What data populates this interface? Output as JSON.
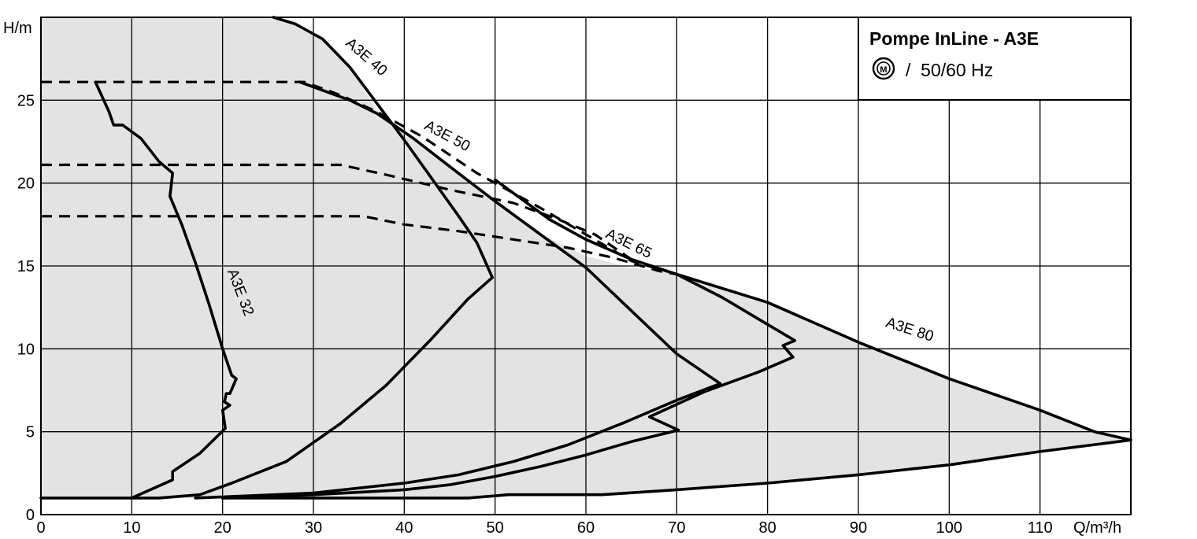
{
  "chart_data": {
    "type": "line",
    "title": "Pompe InLine - A3E",
    "subtitle": "/  50/60 Hz",
    "subtitle_icon": "motor-circle-icon",
    "xlabel": "Q/m³/h",
    "ylabel": "H/m",
    "xlim": [
      0,
      120
    ],
    "ylim": [
      0,
      30
    ],
    "x_ticks": [
      "0",
      "10",
      "20",
      "30",
      "40",
      "50",
      "60",
      "70",
      "80",
      "90",
      "100",
      "110"
    ],
    "y_ticks": [
      "0",
      "5",
      "10",
      "15",
      "20",
      "25"
    ],
    "grid": true,
    "shading": "#e3e3e3",
    "series": [
      {
        "name": "A3E 32",
        "style": "solid",
        "points": [
          [
            6,
            26.1
          ],
          [
            7.5,
            24.3
          ],
          [
            8,
            23.5
          ],
          [
            9,
            23.5
          ],
          [
            11,
            22.7
          ],
          [
            13,
            21.3
          ],
          [
            14.5,
            20.6
          ],
          [
            14.2,
            19.2
          ],
          [
            15.5,
            17.5
          ],
          [
            17,
            15.2
          ],
          [
            18.5,
            12.7
          ],
          [
            20,
            10
          ],
          [
            21,
            8.4
          ],
          [
            21.5,
            8.2
          ],
          [
            20.8,
            7.3
          ],
          [
            20.4,
            7.3
          ],
          [
            20.2,
            6.8
          ],
          [
            20.8,
            6.6
          ],
          [
            20,
            6.3
          ],
          [
            20.3,
            5.2
          ],
          [
            17.5,
            3.7
          ],
          [
            14.5,
            2.6
          ],
          [
            14.5,
            2.1
          ],
          [
            10,
            1.0
          ]
        ]
      },
      {
        "name": "A3E 40",
        "style": "solid",
        "points": [
          [
            25.6,
            30
          ],
          [
            28,
            29.6
          ],
          [
            31,
            28.7
          ],
          [
            34,
            27
          ],
          [
            37,
            24.8
          ],
          [
            40,
            22.6
          ],
          [
            43,
            20.3
          ],
          [
            46,
            18
          ],
          [
            48,
            16.4
          ],
          [
            49.7,
            14.3
          ],
          [
            47,
            13
          ],
          [
            43,
            10.6
          ],
          [
            38,
            7.8
          ],
          [
            33,
            5.5
          ],
          [
            27,
            3.2
          ],
          [
            21,
            1.9
          ],
          [
            17.5,
            1.2
          ],
          [
            13,
            1.0
          ],
          [
            0,
            1.0
          ]
        ]
      },
      {
        "name": "A3E 50",
        "style": "solid",
        "points": [
          [
            28.5,
            26.1
          ],
          [
            34,
            25
          ],
          [
            37,
            24.2
          ],
          [
            41,
            22.7
          ],
          [
            45,
            21
          ],
          [
            50,
            18.9
          ],
          [
            55,
            16.9
          ],
          [
            60,
            14.9
          ],
          [
            65,
            12.3
          ],
          [
            70,
            9.7
          ],
          [
            74.8,
            7.9
          ],
          [
            70,
            6.9
          ],
          [
            64,
            5.5
          ],
          [
            58,
            4.2
          ],
          [
            52,
            3.2
          ],
          [
            46,
            2.4
          ],
          [
            40,
            1.9
          ],
          [
            30,
            1.3
          ],
          [
            17,
            1.0
          ]
        ]
      },
      {
        "name": "A3E 65",
        "style": "solid",
        "points": [
          [
            50,
            20.2
          ],
          [
            56,
            17.8
          ],
          [
            60,
            16.6
          ],
          [
            65,
            15.4
          ],
          [
            70,
            14.5
          ],
          [
            75,
            13.1
          ],
          [
            79,
            11.8
          ],
          [
            83,
            10.5
          ],
          [
            81.7,
            10.2
          ],
          [
            82.8,
            9.5
          ],
          [
            79,
            8.6
          ],
          [
            73,
            7.4
          ],
          [
            67,
            5.9
          ],
          [
            70.2,
            5.1
          ],
          [
            65,
            4.4
          ],
          [
            60,
            3.6
          ],
          [
            55,
            2.9
          ],
          [
            50,
            2.3
          ],
          [
            45,
            1.8
          ],
          [
            40,
            1.5
          ],
          [
            30,
            1.2
          ],
          [
            20,
            1.0
          ]
        ]
      },
      {
        "name": "A3E 80",
        "style": "solid",
        "points": [
          [
            70,
            14.5
          ],
          [
            80,
            12.8
          ],
          [
            90,
            10.4
          ],
          [
            100,
            8.2
          ],
          [
            110,
            6.3
          ],
          [
            116,
            5
          ],
          [
            120,
            4.5
          ],
          [
            110,
            3.8
          ],
          [
            100,
            3.0
          ],
          [
            90,
            2.4
          ],
          [
            80,
            1.9
          ],
          [
            70,
            1.5
          ],
          [
            61.8,
            1.2
          ],
          [
            51.5,
            1.2
          ],
          [
            47,
            1.0
          ],
          [
            20,
            1.0
          ]
        ]
      },
      {
        "name": "",
        "style": "dashed",
        "points": [
          [
            0,
            26.1
          ],
          [
            29,
            26.1
          ],
          [
            33,
            25.3
          ],
          [
            37,
            24.3
          ],
          [
            42,
            22.8
          ],
          [
            48,
            20.6
          ],
          [
            55,
            18.5
          ],
          [
            60,
            16.9
          ],
          [
            65,
            15.3
          ],
          [
            70,
            14.5
          ]
        ]
      },
      {
        "name": "",
        "style": "dashed",
        "points": [
          [
            0,
            21.1
          ],
          [
            33,
            21.1
          ],
          [
            38,
            20.5
          ],
          [
            45,
            19.6
          ],
          [
            52,
            18.8
          ],
          [
            57,
            17.8
          ],
          [
            61,
            16.9
          ],
          [
            65,
            15.4
          ],
          [
            70,
            14.5
          ]
        ]
      },
      {
        "name": "",
        "style": "dashed",
        "points": [
          [
            0,
            18
          ],
          [
            35.5,
            18
          ],
          [
            40,
            17.5
          ],
          [
            46,
            17.1
          ],
          [
            52,
            16.6
          ],
          [
            58,
            16.1
          ],
          [
            63,
            15.5
          ],
          [
            68,
            14.7
          ],
          [
            70,
            14.5
          ]
        ]
      }
    ],
    "envelope": [
      [
        0,
        30
      ],
      [
        25.6,
        30
      ],
      [
        28,
        29.6
      ],
      [
        31,
        28.7
      ],
      [
        34,
        27
      ],
      [
        37,
        24.4
      ],
      [
        41,
        22.7
      ],
      [
        45,
        21
      ],
      [
        50,
        18.9
      ],
      [
        55,
        16.9
      ],
      [
        60,
        15.6
      ],
      [
        65,
        14.9
      ],
      [
        70,
        14.5
      ],
      [
        80,
        12.8
      ],
      [
        90,
        10.4
      ],
      [
        100,
        8.2
      ],
      [
        110,
        6.3
      ],
      [
        116,
        5
      ],
      [
        120,
        4.5
      ],
      [
        110,
        3.8
      ],
      [
        100,
        3.0
      ],
      [
        90,
        2.4
      ],
      [
        80,
        1.9
      ],
      [
        70,
        1.5
      ],
      [
        61.8,
        1.2
      ],
      [
        51.5,
        1.2
      ],
      [
        47,
        1.0
      ],
      [
        0,
        1.0
      ]
    ],
    "annotations": [
      {
        "text": "A3E 32",
        "x": 21.5,
        "y": 13.3,
        "angle": 69
      },
      {
        "text": "A3E 40",
        "x": 35.5,
        "y": 27.4,
        "angle": 41
      },
      {
        "text": "A3E 50",
        "x": 44.5,
        "y": 22.6,
        "angle": 28
      },
      {
        "text": "A3E 65",
        "x": 64.5,
        "y": 16.1,
        "angle": 26
      },
      {
        "text": "A3E 80",
        "x": 95.5,
        "y": 10.9,
        "angle": 18
      }
    ]
  }
}
